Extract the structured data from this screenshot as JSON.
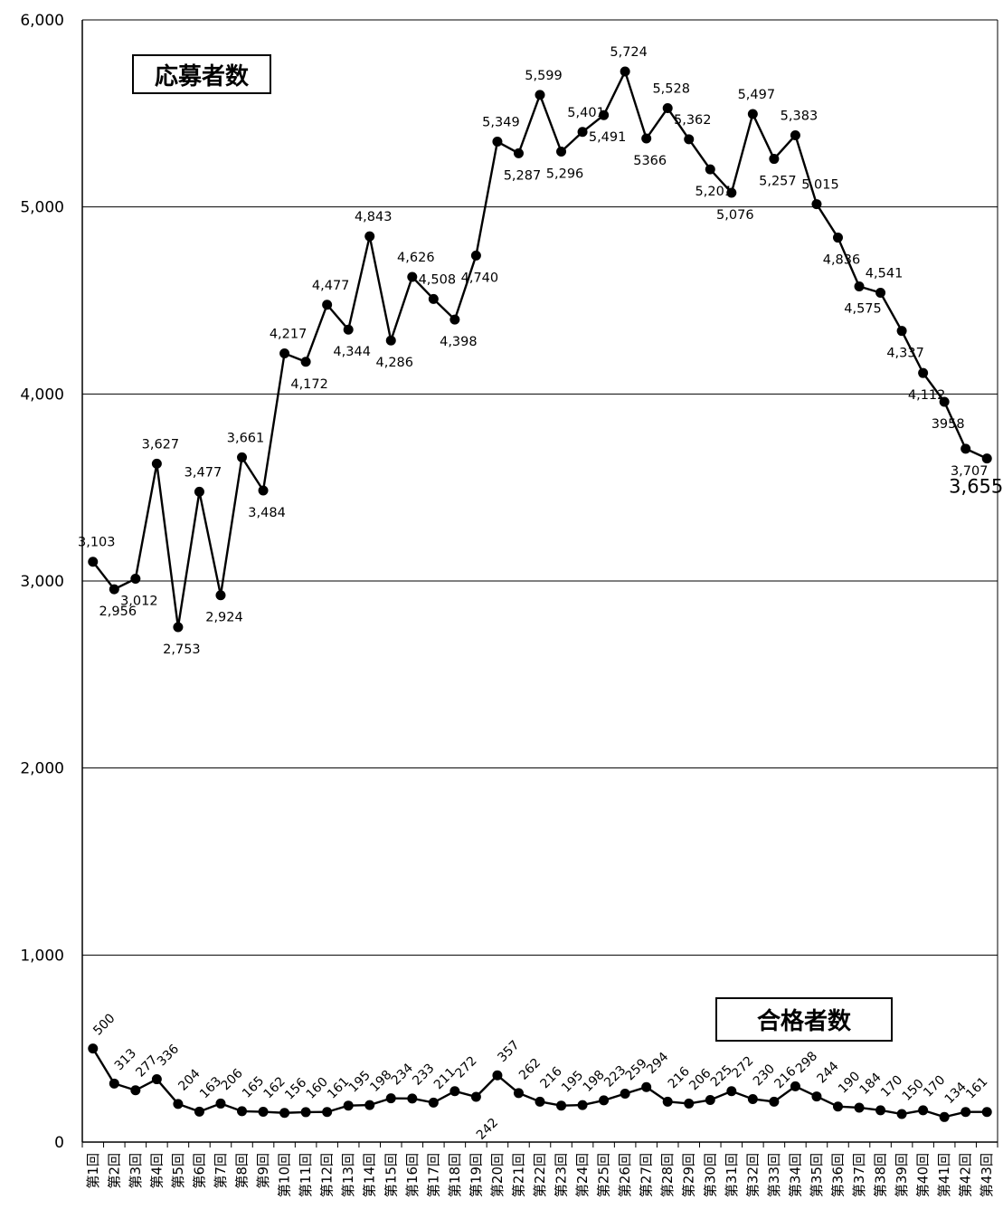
{
  "chart_data": {
    "type": "line",
    "title": "",
    "xlabel": "",
    "ylabel": "",
    "ylim": [
      0,
      6000
    ],
    "yticks": [
      "0",
      "1,000",
      "2,000",
      "3,000",
      "4,000",
      "5,000",
      "6,000"
    ],
    "grid": true,
    "categories": [
      "第1回",
      "第2回",
      "第3回",
      "第4回",
      "第5回",
      "第6回",
      "第7回",
      "第8回",
      "第9回",
      "第10回",
      "第11回",
      "第12回",
      "第13回",
      "第14回",
      "第15回",
      "第16回",
      "第17回",
      "第18回",
      "第19回",
      "第20回",
      "第21回",
      "第22回",
      "第23回",
      "第24回",
      "第25回",
      "第26回",
      "第27回",
      "第28回",
      "第29回",
      "第30回",
      "第31回",
      "第32回",
      "第33回",
      "第34回",
      "第35回",
      "第36回",
      "第37回",
      "第38回",
      "第39回",
      "第40回",
      "第41回",
      "第42回",
      "第43回"
    ],
    "series": [
      {
        "name": "応募者数",
        "values": [
          3103,
          2956,
          3012,
          3627,
          2753,
          3477,
          2924,
          3661,
          3484,
          4217,
          4172,
          4477,
          4344,
          4843,
          4286,
          4626,
          4508,
          4398,
          4740,
          5349,
          5287,
          5599,
          5296,
          5401,
          5491,
          5724,
          5366,
          5528,
          5362,
          5201,
          5076,
          5497,
          5257,
          5383,
          5015,
          4836,
          4575,
          4541,
          4337,
          4112,
          3958,
          3707,
          3655
        ],
        "labels": [
          "3,103",
          "2,956",
          "3,012",
          "3,627",
          "2,753",
          "3,477",
          "2,924",
          "3,661",
          "3,484",
          "4,217",
          "4,172",
          "4,477",
          "4,344",
          "4,843",
          "4,286",
          "4,626",
          "4,508",
          "4,398",
          "4,740",
          "5,349",
          "5,287",
          "5,599",
          "5,296",
          "5,401",
          "5,491",
          "5,724",
          "5366",
          "5,528",
          "5,362",
          "5,201",
          "5,076",
          "5,497",
          "5,257",
          "5,383",
          "5,015",
          "4,836",
          "4,575",
          "4,541",
          "4,337",
          "4,112",
          "3958",
          "3,707",
          "3,655"
        ]
      },
      {
        "name": "合格者数",
        "values": [
          500,
          313,
          277,
          336,
          204,
          163,
          206,
          165,
          162,
          156,
          160,
          161,
          195,
          198,
          234,
          233,
          211,
          272,
          242,
          357,
          262,
          216,
          195,
          198,
          223,
          259,
          294,
          216,
          206,
          225,
          272,
          230,
          216,
          298,
          244,
          190,
          184,
          170,
          150,
          170,
          134,
          161,
          161
        ],
        "labels": [
          "500",
          "313",
          "277",
          "336",
          "204",
          "163",
          "206",
          "165",
          "162",
          "156",
          "160",
          "161",
          "195",
          "198",
          "234",
          "233",
          "211",
          "272",
          "242",
          "357",
          "262",
          "216",
          "195",
          "198",
          "223",
          "259",
          "294",
          "216",
          "206",
          "225",
          "272",
          "230",
          "216",
          "298",
          "244",
          "190",
          "184",
          "170",
          "150",
          "170",
          "134",
          "161",
          ""
        ]
      }
    ]
  }
}
